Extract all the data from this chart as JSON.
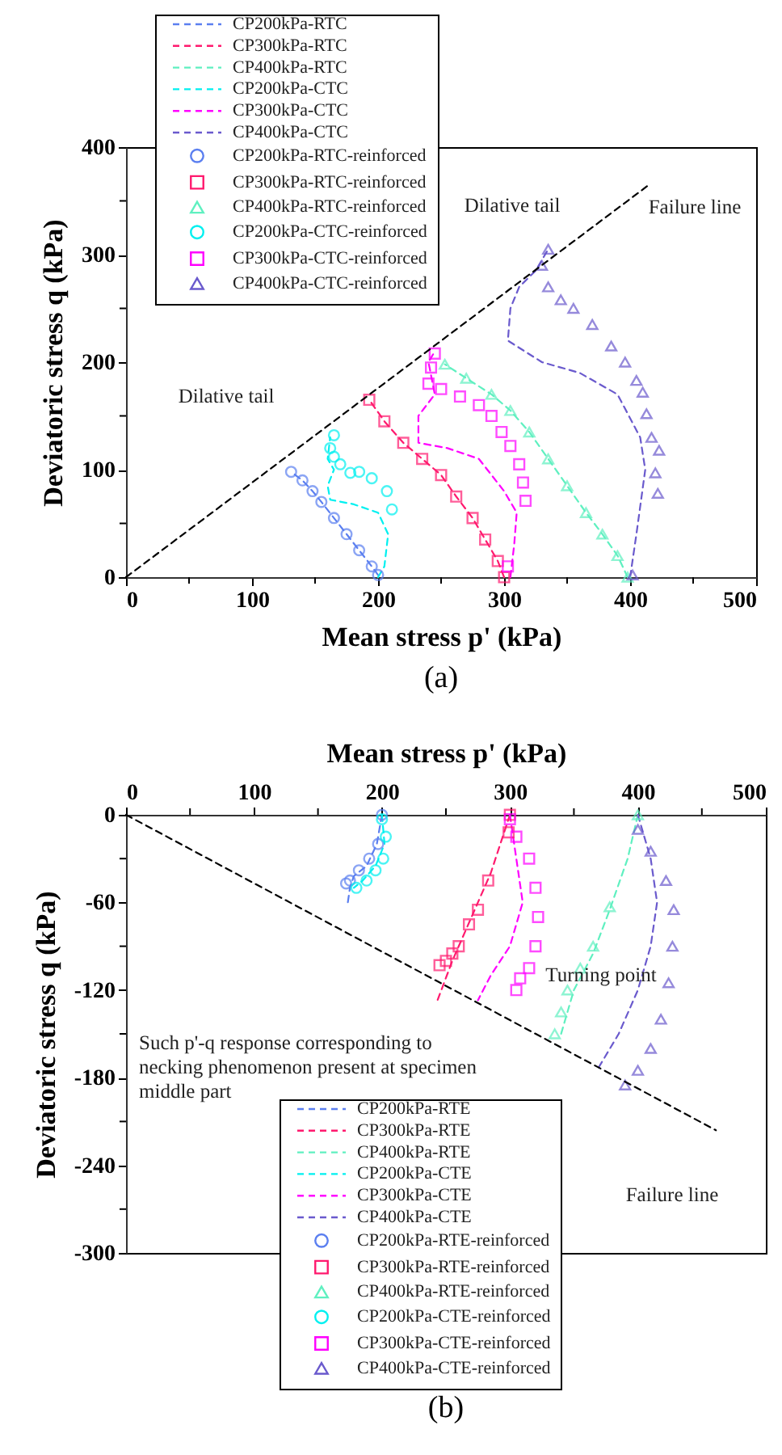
{
  "chart_data": [
    {
      "type": "line",
      "title": "(a)",
      "xlabel": "Mean stress p' (kPa)",
      "ylabel": "Deviatoric stress q (kPa)",
      "xlim": [
        0,
        500
      ],
      "ylim": [
        0,
        400
      ],
      "xticks": [
        0,
        {
          "value": 50,
          "label": null
        },
        100,
        {
          "value": 150,
          "label": null
        },
        200,
        {
          "value": 250,
          "label": null
        },
        300,
        {
          "value": 350,
          "label": null
        },
        400,
        {
          "value": 450,
          "label": null
        },
        500
      ],
      "yticks": [
        0,
        {
          "value": 50,
          "label": null
        },
        100,
        {
          "value": 150,
          "label": null
        },
        200,
        {
          "value": 250,
          "label": null
        },
        300,
        {
          "value": 350,
          "label": null
        },
        400
      ],
      "grid": false,
      "legend": "top left",
      "annotations": [
        "Dilative tail",
        "Failure line",
        "Dilative tail"
      ],
      "series": [
        {
          "type": "line",
          "name": "CP200kPa-RTC",
          "color": "#5b7ff0",
          "line_style": "dashed",
          "marker": "none",
          "x": [
            200,
            195,
            185,
            175,
            165,
            155,
            148,
            140,
            131
          ],
          "values": [
            2,
            10,
            25,
            40,
            55,
            70,
            80,
            90,
            98
          ]
        },
        {
          "type": "line",
          "name": "CP300kPa-RTC",
          "color": "#ff1a6e",
          "line_style": "dashed",
          "marker": "none",
          "x": [
            300,
            295,
            285,
            275,
            262,
            250,
            235,
            220,
            205,
            193
          ],
          "values": [
            0,
            15,
            35,
            55,
            75,
            95,
            110,
            125,
            145,
            165
          ]
        },
        {
          "type": "line",
          "name": "CP400kPa-RTC",
          "color": "#5ff0c0",
          "line_style": "dashed",
          "marker": "none",
          "x": [
            398,
            390,
            378,
            365,
            350,
            335,
            320,
            305,
            290,
            270,
            253
          ],
          "values": [
            0,
            20,
            40,
            60,
            85,
            110,
            135,
            155,
            170,
            185,
            198
          ]
        },
        {
          "type": "line",
          "name": "CP200kPa-CTC",
          "color": "#00f0f0",
          "line_style": "dashed",
          "marker": "none",
          "x": [
            200,
            205,
            208,
            200,
            180,
            162,
            160,
            165,
            160,
            162
          ],
          "values": [
            0,
            10,
            40,
            60,
            68,
            72,
            85,
            100,
            110,
            130
          ]
        },
        {
          "type": "line",
          "name": "CP300kPa-CTC",
          "color": "#ff00ff",
          "line_style": "dashed",
          "marker": "none",
          "x": [
            305,
            308,
            310,
            300,
            280,
            255,
            232,
            232,
            245,
            240,
            244
          ],
          "values": [
            0,
            30,
            60,
            80,
            110,
            120,
            125,
            150,
            170,
            200,
            208
          ]
        },
        {
          "type": "line",
          "name": "CP400kPa-CTC",
          "color": "#6a5acd",
          "line_style": "dashed",
          "marker": "none",
          "x": [
            400,
            405,
            412,
            408,
            390,
            360,
            330,
            303,
            305,
            312,
            325,
            335
          ],
          "values": [
            0,
            40,
            100,
            130,
            170,
            190,
            200,
            220,
            250,
            270,
            285,
            305
          ]
        },
        {
          "type": "scatter",
          "name": "CP200kPa-RTC-reinforced",
          "color": "#5b7ff0",
          "marker": "circle",
          "x": [
            200,
            195,
            185,
            175,
            165,
            155,
            148,
            140,
            131
          ],
          "values": [
            2,
            10,
            25,
            40,
            55,
            70,
            80,
            90,
            98
          ]
        },
        {
          "type": "scatter",
          "name": "CP300kPa-RTC-reinforced",
          "color": "#ff1a6e",
          "marker": "square",
          "x": [
            300,
            295,
            285,
            275,
            262,
            250,
            235,
            220,
            205,
            193
          ],
          "values": [
            0,
            15,
            35,
            55,
            75,
            95,
            110,
            125,
            145,
            165
          ]
        },
        {
          "type": "scatter",
          "name": "CP400kPa-RTC-reinforced",
          "color": "#5ff0c0",
          "marker": "triangle",
          "x": [
            398,
            390,
            378,
            365,
            350,
            335,
            320,
            305,
            290,
            270,
            253
          ],
          "values": [
            0,
            20,
            40,
            60,
            85,
            110,
            135,
            155,
            170,
            185,
            198
          ]
        },
        {
          "type": "scatter",
          "name": "CP200kPa-CTC-reinforced",
          "color": "#00f0f0",
          "marker": "circle",
          "x": [
            211,
            207,
            195,
            185,
            178,
            170,
            165,
            162,
            165
          ],
          "values": [
            63,
            80,
            92,
            98,
            97,
            105,
            112,
            120,
            132
          ]
        },
        {
          "type": "scatter",
          "name": "CP300kPa-CTC-reinforced",
          "color": "#ff00ff",
          "marker": "square",
          "x": [
            303,
            317,
            315,
            312,
            305,
            298,
            290,
            280,
            265,
            250,
            240,
            242,
            245
          ],
          "values": [
            10,
            71,
            88,
            105,
            122,
            135,
            150,
            160,
            168,
            175,
            180,
            195,
            208
          ]
        },
        {
          "type": "scatter",
          "name": "CP400kPa-CTC-reinforced",
          "color": "#6a5acd",
          "marker": "triangle",
          "x": [
            402,
            422,
            420,
            423,
            417,
            413,
            410,
            405,
            396,
            385,
            370,
            355,
            345,
            335,
            330,
            335
          ],
          "values": [
            2,
            78,
            97,
            118,
            130,
            152,
            172,
            183,
            200,
            215,
            235,
            250,
            258,
            270,
            290,
            305
          ]
        },
        {
          "type": "line",
          "color": "#000000",
          "line_style": "dashed",
          "marker": "none",
          "x": [
            0,
            415
          ],
          "values": [
            0,
            365
          ]
        }
      ]
    },
    {
      "type": "line",
      "title": "(b)",
      "xlabel": "Mean stress p' (kPa)",
      "ylabel": "Deviatoric stress q (kPa)",
      "xlim": [
        0,
        500
      ],
      "ylim": [
        -300,
        0
      ],
      "xticks": [
        0,
        {
          "value": 50,
          "label": null
        },
        100,
        {
          "value": 150,
          "label": null
        },
        200,
        {
          "value": 250,
          "label": null
        },
        300,
        {
          "value": 350,
          "label": null
        },
        400,
        {
          "value": 450,
          "label": null
        },
        500
      ],
      "yticks": [
        0,
        {
          "value": -30,
          "label": null
        },
        -60,
        {
          "value": -90,
          "label": null
        },
        -120,
        {
          "value": -150,
          "label": null
        },
        -180,
        {
          "value": -210,
          "label": null
        },
        -240,
        {
          "value": -270,
          "label": null
        },
        -300
      ],
      "grid": false,
      "legend": "bottom",
      "annotations": [
        "Turning point",
        "Such p'-q response corresponding to necking phenomenon present at specimen middle part",
        "Failure line"
      ],
      "series": [
        {
          "type": "line",
          "name": "CP200kPa-RTE",
          "color": "#5b7ff0",
          "line_style": "dashed",
          "marker": "none",
          "x": [
            200,
            196,
            188,
            178,
            175,
            173
          ],
          "values": [
            0,
            -20,
            -35,
            -42,
            -50,
            -62
          ]
        },
        {
          "type": "line",
          "name": "CP300kPa-RTE",
          "color": "#ff1a6e",
          "line_style": "dashed",
          "marker": "none",
          "x": [
            300,
            285,
            270,
            255,
            243
          ],
          "values": [
            0,
            -40,
            -70,
            -100,
            -128
          ]
        },
        {
          "type": "line",
          "name": "CP400kPa-RTE",
          "color": "#5ff0c0",
          "line_style": "dashed",
          "marker": "none",
          "x": [
            400,
            392,
            378,
            365,
            350,
            340
          ],
          "values": [
            0,
            -30,
            -65,
            -95,
            -120,
            -150
          ]
        },
        {
          "type": "line",
          "name": "CP200kPa-CTE",
          "color": "#00f0f0",
          "line_style": "dashed",
          "marker": "none",
          "x": [
            200,
            202,
            195,
            185,
            178
          ],
          "values": [
            0,
            -20,
            -35,
            -45,
            -50
          ]
        },
        {
          "type": "line",
          "name": "CP300kPa-CTE",
          "color": "#ff00ff",
          "line_style": "dashed",
          "marker": "none",
          "x": [
            300,
            305,
            310,
            300,
            285,
            275
          ],
          "values": [
            0,
            -30,
            -60,
            -90,
            -110,
            -127
          ]
        },
        {
          "type": "line",
          "name": "CP400kPa-CTE",
          "color": "#6a5acd",
          "line_style": "dashed",
          "marker": "none",
          "x": [
            400,
            410,
            415,
            410,
            400,
            385,
            368
          ],
          "values": [
            0,
            -30,
            -60,
            -90,
            -120,
            -150,
            -175
          ]
        },
        {
          "type": "scatter",
          "name": "CP200kPa-RTE-reinforced",
          "color": "#5b7ff0",
          "marker": "circle",
          "x": [
            200,
            197,
            190,
            182,
            175,
            172
          ],
          "values": [
            0,
            -20,
            -30,
            -38,
            -45,
            -47
          ]
        },
        {
          "type": "scatter",
          "name": "CP300kPa-RTE-reinforced",
          "color": "#ff1a6e",
          "marker": "square",
          "x": [
            300,
            299,
            283,
            275,
            268,
            260,
            255,
            250,
            245
          ],
          "values": [
            0,
            -12,
            -45,
            -65,
            -75,
            -90,
            -95,
            -100,
            -103
          ]
        },
        {
          "type": "scatter",
          "name": "CP400kPa-RTE-reinforced",
          "color": "#5ff0c0",
          "marker": "triangle",
          "x": [
            400,
            378,
            365,
            355,
            345,
            340,
            335
          ],
          "values": [
            0,
            -63,
            -90,
            -105,
            -120,
            -135,
            -150
          ]
        },
        {
          "type": "scatter",
          "name": "CP200kPa-CTE-reinforced",
          "color": "#00f0f0",
          "marker": "circle",
          "x": [
            200,
            203,
            201,
            195,
            188,
            180
          ],
          "values": [
            -3,
            -15,
            -30,
            -38,
            -45,
            -50
          ]
        },
        {
          "type": "scatter",
          "name": "CP300kPa-CTE-reinforced",
          "color": "#ff00ff",
          "marker": "square",
          "x": [
            300,
            305,
            315,
            320,
            322,
            320,
            315,
            308,
            305
          ],
          "values": [
            -3,
            -15,
            -30,
            -50,
            -70,
            -90,
            -105,
            -112,
            -120
          ]
        },
        {
          "type": "scatter",
          "name": "CP400kPa-CTE-reinforced",
          "color": "#6a5acd",
          "marker": "triangle",
          "x": [
            400,
            410,
            422,
            428,
            427,
            424,
            418,
            410,
            400,
            390
          ],
          "values": [
            -10,
            -25,
            -45,
            -65,
            -90,
            -115,
            -140,
            -160,
            -175,
            -185
          ]
        },
        {
          "type": "line",
          "color": "#000000",
          "line_style": "dashed",
          "marker": "none",
          "x": [
            0,
            461
          ],
          "values": [
            0,
            -216
          ]
        }
      ]
    }
  ]
}
